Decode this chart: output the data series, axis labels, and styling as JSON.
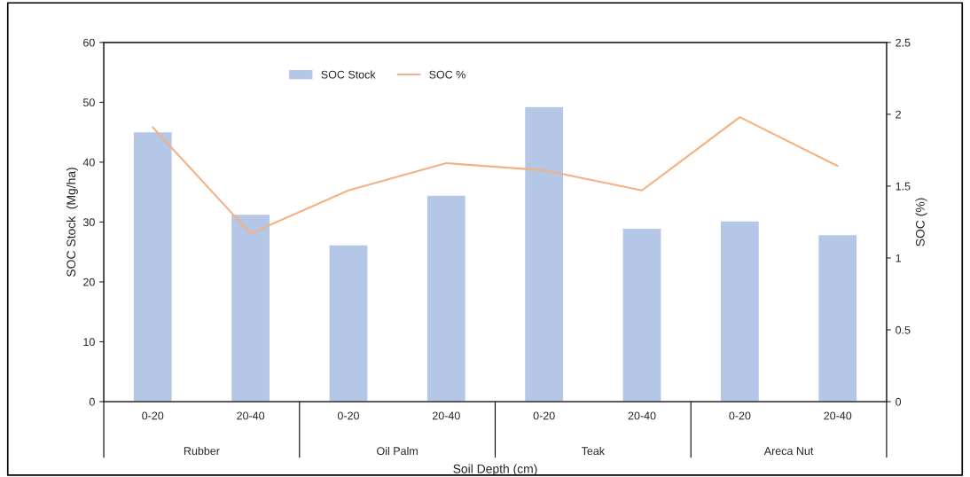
{
  "chart_data": {
    "type": "bar",
    "xlabel": "Soil Depth (cm)",
    "ylabel": "SOC Stock  (Mg/ha)",
    "y2label": "SOC (%)",
    "categories": [
      "0-20",
      "20-40",
      "0-20",
      "20-40",
      "0-20",
      "20-40",
      "0-20",
      "20-40"
    ],
    "series": [
      {
        "name": "SOC Stock",
        "color": "#b4c7e7",
        "values": [
          45.1,
          31.3,
          26.2,
          34.5,
          49.3,
          29.0,
          30.2,
          27.9
        ]
      },
      {
        "name": "SOC %",
        "type": "line",
        "axis": "y2",
        "color": "#f4b183",
        "values": [
          1.91,
          1.17,
          1.47,
          1.66,
          1.61,
          1.47,
          1.98,
          1.64
        ]
      }
    ],
    "ylim": [
      0,
      60
    ],
    "yticks": [
      0,
      10,
      20,
      30,
      40,
      50,
      60
    ],
    "y2lim": [
      0,
      2.5
    ],
    "y2ticks": [
      0,
      0.5,
      1,
      1.5,
      2,
      2.5
    ],
    "annotations": [
      "Rubber",
      "Oil Palm",
      "Teak",
      "Areca Nut"
    ],
    "legend": "top",
    "grid": false
  }
}
